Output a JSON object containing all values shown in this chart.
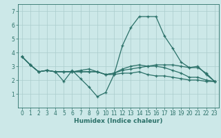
{
  "title": "",
  "xlabel": "Humidex (Indice chaleur)",
  "ylabel": "",
  "background_color": "#cce8e8",
  "grid_color": "#aacccc",
  "line_color": "#2a7068",
  "xlim": [
    -0.5,
    23.5
  ],
  "ylim": [
    0,
    7.5
  ],
  "yticks": [
    1,
    2,
    3,
    4,
    5,
    6,
    7
  ],
  "xticks": [
    0,
    1,
    2,
    3,
    4,
    5,
    6,
    7,
    8,
    9,
    10,
    11,
    12,
    13,
    14,
    15,
    16,
    17,
    18,
    19,
    20,
    21,
    22,
    23
  ],
  "lines": [
    {
      "x": [
        0,
        1,
        2,
        3,
        4,
        5,
        6,
        7,
        8,
        9,
        10,
        11,
        12,
        13,
        14,
        15,
        16,
        17,
        18,
        19,
        20,
        21,
        22,
        23
      ],
      "y": [
        3.7,
        3.1,
        2.6,
        2.7,
        2.6,
        1.9,
        2.7,
        2.1,
        1.5,
        0.8,
        1.1,
        2.4,
        4.5,
        5.8,
        6.6,
        6.6,
        6.6,
        5.2,
        4.3,
        3.3,
        2.9,
        3.0,
        2.4,
        1.9
      ]
    },
    {
      "x": [
        0,
        1,
        2,
        3,
        4,
        5,
        6,
        7,
        8,
        9,
        10,
        11,
        12,
        13,
        14,
        15,
        16,
        17,
        18,
        19,
        20,
        21,
        22,
        23
      ],
      "y": [
        3.7,
        3.1,
        2.6,
        2.7,
        2.6,
        2.6,
        2.6,
        2.6,
        2.6,
        2.6,
        2.4,
        2.5,
        2.7,
        2.8,
        2.9,
        3.0,
        3.1,
        3.1,
        3.1,
        3.0,
        2.9,
        2.9,
        2.5,
        1.9
      ]
    },
    {
      "x": [
        0,
        1,
        2,
        3,
        4,
        5,
        6,
        7,
        8,
        9,
        10,
        11,
        12,
        13,
        14,
        15,
        16,
        17,
        18,
        19,
        20,
        21,
        22,
        23
      ],
      "y": [
        3.7,
        3.1,
        2.6,
        2.7,
        2.6,
        2.6,
        2.6,
        2.7,
        2.8,
        2.6,
        2.4,
        2.5,
        2.8,
        3.0,
        3.1,
        3.0,
        3.0,
        2.9,
        2.7,
        2.5,
        2.2,
        2.2,
        2.0,
        1.9
      ]
    },
    {
      "x": [
        0,
        1,
        2,
        3,
        4,
        5,
        6,
        7,
        8,
        9,
        10,
        11,
        12,
        13,
        14,
        15,
        16,
        17,
        18,
        19,
        20,
        21,
        22,
        23
      ],
      "y": [
        3.7,
        3.1,
        2.6,
        2.7,
        2.6,
        2.6,
        2.6,
        2.6,
        2.6,
        2.6,
        2.4,
        2.4,
        2.5,
        2.5,
        2.6,
        2.4,
        2.3,
        2.3,
        2.2,
        2.1,
        2.0,
        2.0,
        1.9,
        1.9
      ]
    }
  ],
  "tick_fontsize": 5.5,
  "xlabel_fontsize": 6.5,
  "linewidth": 0.9,
  "markersize": 3.5,
  "markeredgewidth": 0.9
}
